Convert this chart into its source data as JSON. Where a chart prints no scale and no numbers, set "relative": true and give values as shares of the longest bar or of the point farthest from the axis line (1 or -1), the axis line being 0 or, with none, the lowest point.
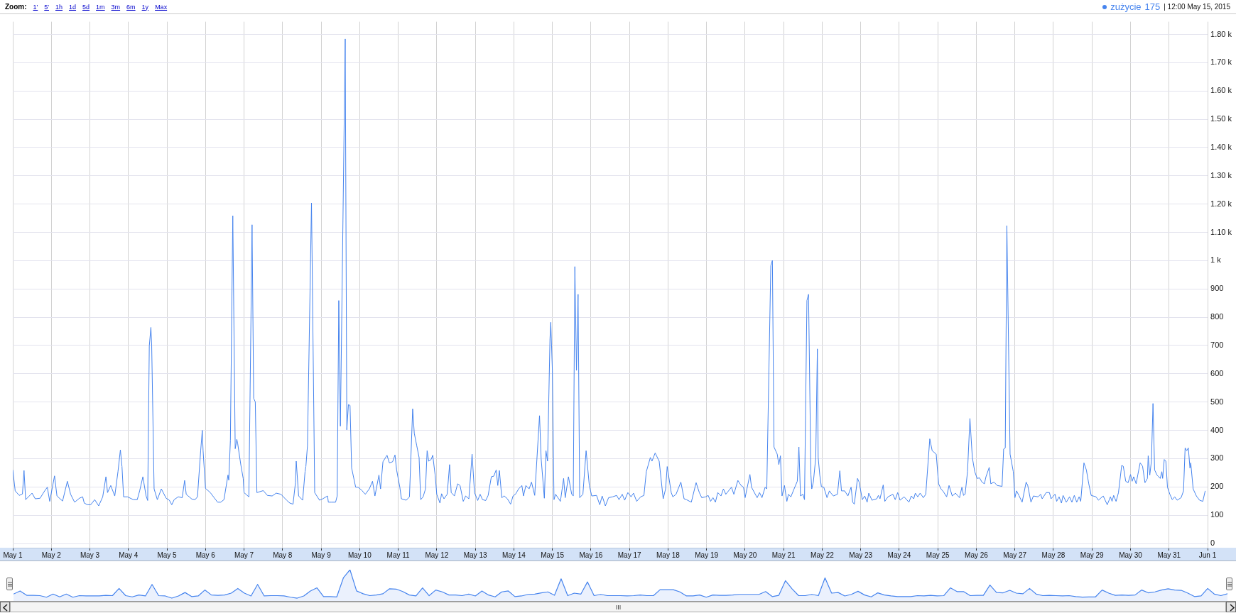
{
  "chart_data": [
    {
      "type": "line",
      "x": [
        "2015-05-01T00:00",
        "2015-05-01T01:30",
        "2015-05-01T04:00",
        "2015-05-01T06:00",
        "2015-05-01T07:00",
        "2015-05-01T08:00",
        "2015-05-01T12:00",
        "2015-05-01T14:00",
        "2015-05-01T17:00",
        "2015-05-01T19:30",
        "2015-05-01T21:30",
        "2015-05-01T23:00",
        "2015-05-02T02:00",
        "2015-05-02T03:30",
        "2015-05-02T07:00",
        "2015-05-02T10:00",
        "2015-05-02T12:00",
        "2015-05-02T14:30",
        "2015-05-02T17:30",
        "2015-05-02T19:30",
        "2015-05-02T20:30",
        "2015-05-02T22:30",
        "2015-05-03T00:30",
        "2015-05-03T03:00",
        "2015-05-03T05:30",
        "2015-05-03T08:00",
        "2015-05-03T10:00",
        "2015-05-03T11:00",
        "2015-05-03T13:00",
        "2015-05-03T15:30",
        "2015-05-03T17:30",
        "2015-05-03T19:00",
        "2015-05-03T20:00",
        "2015-05-03T21:00",
        "2015-05-03T23:30",
        "2015-05-04T03:00",
        "2015-05-04T05:30",
        "2015-05-04T07:00",
        "2015-05-04T09:00",
        "2015-05-04T11:00",
        "2015-05-04T12:00",
        "2015-05-04T13:00",
        "2015-05-04T14:00",
        "2015-05-04T14:30",
        "2015-05-04T16:00",
        "2015-05-04T18:00",
        "2015-05-04T20:30",
        "2015-05-04T23:30",
        "2015-05-05T01:30",
        "2015-05-05T03:00",
        "2015-05-05T04:30",
        "2015-05-05T07:00",
        "2015-05-05T09:30",
        "2015-05-05T11:00",
        "2015-05-05T12:00",
        "2015-05-05T15:30",
        "2015-05-05T17:30",
        "2015-05-05T19:00",
        "2015-05-05T21:00",
        "2015-05-05T22:00",
        "2015-05-05T22:30",
        "2015-05-06T00:00",
        "2015-05-06T03:00",
        "2015-05-06T05:30",
        "2015-05-06T07:30",
        "2015-05-06T09:30",
        "2015-05-06T11:30",
        "2015-05-06T14:00",
        "2015-05-06T14:30",
        "2015-05-06T15:30",
        "2015-05-06T17:00",
        "2015-05-06T18:30",
        "2015-05-06T19:30",
        "2015-05-06T20:00",
        "2015-05-06T22:00",
        "2015-05-06T23:30",
        "2015-05-07T00:00",
        "2015-05-07T03:00",
        "2015-05-07T05:00",
        "2015-05-07T06:00",
        "2015-05-07T07:00",
        "2015-05-07T08:00",
        "2015-05-07T12:00",
        "2015-05-07T14:30",
        "2015-05-07T17:30",
        "2015-05-07T20:00",
        "2015-05-07T23:00",
        "2015-05-08T02:30",
        "2015-05-08T04:30",
        "2015-05-08T06:30",
        "2015-05-08T08:00",
        "2015-05-08T08:30",
        "2015-05-08T10:00",
        "2015-05-08T12:30",
        "2015-05-08T14:00",
        "2015-05-08T14:30",
        "2015-05-08T15:30",
        "2015-05-08T18:00",
        "2015-05-08T20:00",
        "2015-05-08T23:00",
        "2015-05-09T01:00",
        "2015-05-09T04:00",
        "2015-05-09T04:30",
        "2015-05-09T06:30",
        "2015-05-09T09:00",
        "2015-05-09T10:00",
        "2015-05-09T11:00",
        "2015-05-09T12:00",
        "2015-05-09T15:00",
        "2015-05-09T16:00",
        "2015-05-09T17:00",
        "2015-05-09T18:00",
        "2015-05-09T19:00",
        "2015-05-09T21:30",
        "2015-05-09T23:00",
        "2015-05-10T01:00",
        "2015-05-10T03:30",
        "2015-05-10T06:00",
        "2015-05-10T08:00",
        "2015-05-10T09:30",
        "2015-05-10T12:00",
        "2015-05-10T13:00",
        "2015-05-10T14:30",
        "2015-05-10T17:00",
        "2015-05-10T18:30",
        "2015-05-10T20:30",
        "2015-05-10T22:00",
        "2015-05-10T23:00",
        "2015-05-11T01:00",
        "2015-05-11T02:00",
        "2015-05-11T05:00",
        "2015-05-11T07:00",
        "2015-05-11T09:00",
        "2015-05-11T10:00",
        "2015-05-11T11:30",
        "2015-05-11T13:00",
        "2015-05-11T14:00",
        "2015-05-11T15:30",
        "2015-05-11T17:00",
        "2015-05-11T18:00",
        "2015-05-11T19:00",
        "2015-05-11T20:30",
        "2015-05-11T21:30",
        "2015-05-11T23:00",
        "2015-05-12T00:00",
        "2015-05-12T02:00",
        "2015-05-12T03:00",
        "2015-05-12T04:30",
        "2015-05-12T06:30",
        "2015-05-12T08:00",
        "2015-05-12T09:00",
        "2015-05-12T11:00",
        "2015-05-12T13:00",
        "2015-05-12T14:30",
        "2015-05-12T16:30",
        "2015-05-12T18:00",
        "2015-05-12T20:00",
        "2015-05-12T22:00",
        "2015-05-12T23:30",
        "2015-05-13T01:30",
        "2015-05-13T03:00",
        "2015-05-13T04:30",
        "2015-05-13T06:30",
        "2015-05-13T08:00",
        "2015-05-13T10:00",
        "2015-05-13T11:30",
        "2015-05-13T13:00",
        "2015-05-13T14:00",
        "2015-05-13T15:00",
        "2015-05-13T16:30",
        "2015-05-13T18:00",
        "2015-05-13T20:00",
        "2015-05-13T22:00",
        "2015-05-13T23:30",
        "2015-05-14T01:00",
        "2015-05-14T03:00",
        "2015-05-14T05:00",
        "2015-05-14T06:00",
        "2015-05-14T07:30",
        "2015-05-14T09:30",
        "2015-05-14T11:00",
        "2015-05-14T13:00",
        "2015-05-14T16:00",
        "2015-05-14T17:00",
        "2015-05-14T19:00",
        "2015-05-14T20:00",
        "2015-05-14T21:00",
        "2015-05-14T22:30",
        "2015-05-14T23:00",
        "2015-05-15T00:00",
        "2015-05-15T01:00",
        "2015-05-15T02:00",
        "2015-05-15T05:00",
        "2015-05-15T07:00",
        "2015-05-15T08:00",
        "2015-05-15T10:00",
        "2015-05-15T12:00",
        "2015-05-15T13:00",
        "2015-05-15T14:00",
        "2015-05-15T15:00",
        "2015-05-15T16:00",
        "2015-05-15T17:00",
        "2015-05-15T19:00",
        "2015-05-15T21:00",
        "2015-05-15T23:00",
        "2015-05-16T00:30",
        "2015-05-16T03:30",
        "2015-05-16T05:30",
        "2015-05-16T07:00",
        "2015-05-16T09:00",
        "2015-05-16T11:00",
        "2015-05-16T13:30",
        "2015-05-16T16:00",
        "2015-05-16T17:30",
        "2015-05-16T19:30",
        "2015-05-16T21:00",
        "2015-05-16T23:00",
        "2015-05-17T01:00",
        "2015-05-17T02:30",
        "2015-05-17T04:30",
        "2015-05-17T07:00",
        "2015-05-17T09:00",
        "2015-05-17T10:30",
        "2015-05-17T13:00",
        "2015-05-17T14:00",
        "2015-05-17T16:00",
        "2015-05-17T18:30",
        "2015-05-17T21:00",
        "2015-05-17T22:30",
        "2015-05-17T23:30",
        "2015-05-18T02:00",
        "2015-05-18T03:00",
        "2015-05-18T05:00",
        "2015-05-18T08:00",
        "2015-05-18T10:00",
        "2015-05-18T11:30",
        "2015-05-18T14:30",
        "2015-05-18T17:30",
        "2015-05-18T19:30",
        "2015-05-18T21:00",
        "2015-05-18T23:30",
        "2015-05-19T01:00",
        "2015-05-19T02:30",
        "2015-05-19T04:00",
        "2015-05-19T05:30",
        "2015-05-19T07:00",
        "2015-05-19T09:00",
        "2015-05-19T10:30",
        "2015-05-19T12:00",
        "2015-05-19T15:30",
        "2015-05-19T17:00",
        "2015-05-19T19:30",
        "2015-05-19T21:30",
        "2015-05-19T23:00",
        "2015-05-20T00:00",
        "2015-05-20T03:00",
        "2015-05-20T04:00",
        "2015-05-20T07:30",
        "2015-05-20T09:00",
        "2015-05-20T10:30",
        "2015-05-20T12:30",
        "2015-05-20T13:30",
        "2015-05-20T16:00",
        "2015-05-20T17:00",
        "2015-05-20T18:00",
        "2015-05-20T20:00",
        "2015-05-20T21:00",
        "2015-05-20T22:00",
        "2015-05-20T23:00",
        "2015-05-21T00:30",
        "2015-05-21T02:00",
        "2015-05-21T03:00",
        "2015-05-21T04:30",
        "2015-05-21T06:30",
        "2015-05-21T08:30",
        "2015-05-21T09:30",
        "2015-05-21T10:30",
        "2015-05-21T12:00",
        "2015-05-21T13:00",
        "2015-05-21T14:30",
        "2015-05-21T15:30",
        "2015-05-21T17:00",
        "2015-05-21T17:30",
        "2015-05-21T18:30",
        "2015-05-21T20:00",
        "2015-05-21T21:00",
        "2015-05-21T21:30",
        "2015-05-21T22:30",
        "2015-05-21T23:30",
        "2015-05-22T01:00",
        "2015-05-22T03:00",
        "2015-05-22T04:30",
        "2015-05-22T05:30",
        "2015-05-22T07:00",
        "2015-05-22T09:30",
        "2015-05-22T11:00",
        "2015-05-22T12:00",
        "2015-05-22T14:00",
        "2015-05-22T16:00",
        "2015-05-22T18:00",
        "2015-05-22T19:00",
        "2015-05-22T20:00",
        "2015-05-22T22:00",
        "2015-05-22T23:00",
        "2015-05-23T01:00",
        "2015-05-23T02:30",
        "2015-05-23T04:00",
        "2015-05-23T05:00",
        "2015-05-23T07:00",
        "2015-05-23T10:00",
        "2015-05-23T11:00",
        "2015-05-23T12:00",
        "2015-05-23T14:00",
        "2015-05-23T15:00",
        "2015-05-23T17:00",
        "2015-05-23T20:00",
        "2015-05-23T21:30",
        "2015-05-23T23:00",
        "2015-05-24T00:30",
        "2015-05-24T03:00",
        "2015-05-24T06:00",
        "2015-05-24T07:30",
        "2015-05-24T09:00",
        "2015-05-24T10:00",
        "2015-05-24T11:30",
        "2015-05-24T13:00",
        "2015-05-24T15:00",
        "2015-05-24T16:30",
        "2015-05-24T19:00",
        "2015-05-24T20:30",
        "2015-05-24T23:00",
        "2015-05-25T00:30",
        "2015-05-25T02:00",
        "2015-05-25T03:30",
        "2015-05-25T05:30",
        "2015-05-25T07:00",
        "2015-05-25T09:00",
        "2015-05-25T11:00",
        "2015-05-25T13:30",
        "2015-05-25T15:00",
        "2015-05-25T16:00",
        "2015-05-25T17:00",
        "2015-05-25T18:30",
        "2015-05-25T20:00",
        "2015-05-25T21:30",
        "2015-05-25T23:00",
        "2015-05-26T00:30",
        "2015-05-26T02:00",
        "2015-05-26T03:30",
        "2015-05-26T05:00",
        "2015-05-26T06:00",
        "2015-05-26T08:00",
        "2015-05-26T09:00",
        "2015-05-26T11:00",
        "2015-05-26T13:00",
        "2015-05-26T16:00",
        "2015-05-26T17:00",
        "2015-05-26T18:00",
        "2015-05-26T19:00",
        "2015-05-26T21:00",
        "2015-05-26T23:00",
        "2015-05-27T00:00",
        "2015-05-27T01:00",
        "2015-05-27T02:30",
        "2015-05-27T04:30",
        "2015-05-27T07:00",
        "2015-05-27T08:00",
        "2015-05-27T10:00",
        "2015-05-27T11:30",
        "2015-05-27T14:30",
        "2015-05-27T16:00",
        "2015-05-27T17:00",
        "2015-05-27T19:30",
        "2015-05-27T21:30",
        "2015-05-27T22:30",
        "2015-05-28T01:00",
        "2015-05-28T02:00",
        "2015-05-28T03:30",
        "2015-05-28T05:00",
        "2015-05-28T06:00",
        "2015-05-28T08:00",
        "2015-05-28T10:00",
        "2015-05-28T11:30",
        "2015-05-28T13:00",
        "2015-05-28T14:30",
        "2015-05-28T16:00",
        "2015-05-28T17:00",
        "2015-05-28T19:00",
        "2015-05-28T20:30",
        "2015-05-28T22:00",
        "2015-05-28T23:30",
        "2015-05-29T02:30",
        "2015-05-29T04:00",
        "2015-05-29T07:00",
        "2015-05-29T09:30",
        "2015-05-29T11:30",
        "2015-05-29T12:30",
        "2015-05-29T13:30",
        "2015-05-29T15:00",
        "2015-05-29T16:30",
        "2015-05-29T18:30",
        "2015-05-29T19:30",
        "2015-05-29T21:00",
        "2015-05-29T22:30",
        "2015-05-30T00:00",
        "2015-05-30T01:00",
        "2015-05-30T02:00",
        "2015-05-30T03:30",
        "2015-05-30T04:30",
        "2015-05-30T06:00",
        "2015-05-30T07:30",
        "2015-05-30T09:00",
        "2015-05-30T10:30",
        "2015-05-30T11:00",
        "2015-05-30T12:00",
        "2015-05-30T13:00",
        "2015-05-30T14:00",
        "2015-05-30T15:00",
        "2015-05-30T16:30",
        "2015-05-30T18:30",
        "2015-05-30T19:30",
        "2015-05-30T20:00",
        "2015-05-30T21:00",
        "2015-05-30T22:00",
        "2015-05-30T23:00",
        "2015-05-31T00:30",
        "2015-05-31T02:00",
        "2015-05-31T03:30",
        "2015-05-31T05:00",
        "2015-05-31T07:30",
        "2015-05-31T09:00",
        "2015-05-31T10:00",
        "2015-05-31T11:00",
        "2015-05-31T12:00",
        "2015-05-31T13:00",
        "2015-05-31T13:30",
        "2015-05-31T15:00",
        "2015-05-31T17:00",
        "2015-05-31T19:00",
        "2015-05-31T21:00",
        "2015-05-31T22:30"
      ],
      "series": [
        {
          "name": "zużycie",
          "color": "#4684ee",
          "values": [
            260,
            186,
            170,
            175,
            258,
            155,
            178,
            158,
            160,
            183,
            199,
            149,
            239,
            168,
            150,
            220,
            174,
            146,
            160,
            165,
            143,
            137,
            137,
            155,
            133,
            165,
            236,
            180,
            205,
            168,
            254,
            331,
            272,
            165,
            165,
            155,
            155,
            186,
            236,
            168,
            152,
            698,
            764,
            698,
            193,
            155,
            193,
            160,
            153,
            137,
            155,
            165,
            162,
            223,
            174,
            157,
            155,
            165,
            328,
            400,
            328,
            195,
            180,
            161,
            146,
            146,
            155,
            242,
            224,
            365,
            1159,
            335,
            368,
            355,
            278,
            229,
            180,
            165,
            1127,
            513,
            501,
            180,
            187,
            170,
            168,
            178,
            174,
            153,
            143,
            139,
            214,
            291,
            168,
            153,
            254,
            272,
            346,
            1204,
            180,
            153,
            158,
            168,
            146,
            146,
            146,
            168,
            859,
            415,
            1784,
            402,
            491,
            488,
            267,
            199,
            199,
            190,
            174,
            193,
            220,
            168,
            242,
            193,
            289,
            312,
            285,
            289,
            313,
            260,
            199,
            158,
            153,
            165,
            476,
            390,
            347,
            304,
            155,
            165,
            193,
            328,
            291,
            297,
            312,
            242,
            174,
            143,
            176,
            158,
            174,
            279,
            180,
            168,
            211,
            205,
            149,
            168,
            158,
            316,
            180,
            152,
            174,
            155,
            152,
            170,
            236,
            238,
            260,
            205,
            258,
            162,
            168,
            158,
            139,
            168,
            174,
            193,
            205,
            168,
            205,
            193,
            217,
            170,
            452,
            300,
            160,
            328,
            291,
            723,
            782,
            612,
            155,
            174,
            149,
            230,
            162,
            236,
            175,
            168,
            979,
            612,
            881,
            162,
            174,
            328,
            205,
            168,
            170,
            137,
            168,
            133,
            162,
            165,
            170,
            155,
            174,
            153,
            180,
            165,
            178,
            149,
            165,
            170,
            254,
            304,
            291,
            320,
            291,
            158,
            193,
            272,
            180,
            165,
            174,
            217,
            158,
            155,
            146,
            215,
            180,
            162,
            165,
            170,
            149,
            162,
            146,
            180,
            168,
            193,
            174,
            199,
            174,
            223,
            205,
            199,
            162,
            244,
            199,
            162,
            180,
            162,
            199,
            193,
            982,
            1001,
            341,
            316,
            279,
            310,
            168,
            205,
            149,
            174,
            165,
            193,
            220,
            341,
            168,
            174,
            155,
            859,
            881,
            242,
            193,
            217,
            304,
            688,
            304,
            242,
            201,
            199,
            162,
            186,
            178,
            168,
            174,
            257,
            186,
            186,
            168,
            199,
            146,
            139,
            230,
            217,
            155,
            168,
            146,
            178,
            153,
            158,
            170,
            158,
            207,
            149,
            165,
            174,
            155,
            180,
            153,
            165,
            146,
            168,
            158,
            178,
            165,
            178,
            162,
            174,
            370,
            328,
            316,
            211,
            193,
            183,
            165,
            205,
            168,
            178,
            162,
            199,
            170,
            174,
            254,
            442,
            304,
            254,
            230,
            232,
            217,
            211,
            236,
            269,
            211,
            217,
            205,
            202,
            334,
            338,
            1124,
            316,
            254,
            162,
            186,
            170,
            146,
            217,
            205,
            146,
            168,
            165,
            174,
            158,
            180,
            180,
            158,
            174,
            149,
            165,
            143,
            170,
            146,
            165,
            146,
            170,
            146,
            165,
            149,
            285,
            260,
            211,
            170,
            165,
            153,
            168,
            137,
            165,
            149,
            170,
            149,
            180,
            276,
            273,
            220,
            215,
            244,
            220,
            236,
            211,
            242,
            285,
            273,
            215,
            230,
            310,
            242,
            291,
            495,
            260,
            242,
            230,
            254,
            230,
            297,
            291,
            199,
            174,
            155,
            165,
            153,
            162,
            186,
            338,
            328,
            338,
            267,
            285,
            193,
            168,
            153,
            149,
            186
          ]
        }
      ],
      "xlim": [
        "2015-05-01",
        "2015-06-01"
      ],
      "xticks": [
        {
          "value": "2015-05-01",
          "label": "May 1"
        },
        {
          "value": "2015-05-02",
          "label": "May 2"
        },
        {
          "value": "2015-05-03",
          "label": "May 3"
        },
        {
          "value": "2015-05-04",
          "label": "May 4"
        },
        {
          "value": "2015-05-05",
          "label": "May 5"
        },
        {
          "value": "2015-05-06",
          "label": "May 6"
        },
        {
          "value": "2015-05-07",
          "label": "May 7"
        },
        {
          "value": "2015-05-08",
          "label": "May 8"
        },
        {
          "value": "2015-05-09",
          "label": "May 9"
        },
        {
          "value": "2015-05-10",
          "label": "May 10"
        },
        {
          "value": "2015-05-11",
          "label": "May 11"
        },
        {
          "value": "2015-05-12",
          "label": "May 12"
        },
        {
          "value": "2015-05-13",
          "label": "May 13"
        },
        {
          "value": "2015-05-14",
          "label": "May 14"
        },
        {
          "value": "2015-05-15",
          "label": "May 15"
        },
        {
          "value": "2015-05-16",
          "label": "May 16"
        },
        {
          "value": "2015-05-17",
          "label": "May 17"
        },
        {
          "value": "2015-05-18",
          "label": "May 18"
        },
        {
          "value": "2015-05-19",
          "label": "May 19"
        },
        {
          "value": "2015-05-20",
          "label": "May 20"
        },
        {
          "value": "2015-05-21",
          "label": "May 21"
        },
        {
          "value": "2015-05-22",
          "label": "May 22"
        },
        {
          "value": "2015-05-23",
          "label": "May 23"
        },
        {
          "value": "2015-05-24",
          "label": "May 24"
        },
        {
          "value": "2015-05-25",
          "label": "May 25"
        },
        {
          "value": "2015-05-26",
          "label": "May 26"
        },
        {
          "value": "2015-05-27",
          "label": "May 27"
        },
        {
          "value": "2015-05-28",
          "label": "May 28"
        },
        {
          "value": "2015-05-29",
          "label": "May 29"
        },
        {
          "value": "2015-05-30",
          "label": "May 30"
        },
        {
          "value": "2015-05-31",
          "label": "May 31"
        },
        {
          "value": "2015-06-01",
          "label": "Jun 1"
        }
      ],
      "ylim": [
        -15,
        1845
      ],
      "yticks": [
        0,
        100,
        200,
        300,
        400,
        500,
        600,
        700,
        800,
        900,
        {
          "value": 1000,
          "label": "1 k"
        },
        {
          "value": 1100,
          "label": "1.10 k"
        },
        {
          "value": 1200,
          "label": "1.20 k"
        },
        {
          "value": 1300,
          "label": "1.30 k"
        },
        {
          "value": 1400,
          "label": "1.40 k"
        },
        {
          "value": 1500,
          "label": "1.50 k"
        },
        {
          "value": 1600,
          "label": "1.60 k"
        },
        {
          "value": 1700,
          "label": "1.70 k"
        },
        {
          "value": 1800,
          "label": "1.80 k"
        }
      ],
      "grid": true,
      "legend": "top right",
      "annotations": [
        "Zoom:",
        "1'",
        "5'",
        "1h",
        "1d",
        "5d",
        "1m",
        "3m",
        "6m",
        "1y",
        "Max",
        "175",
        "| 12:00 May 15, 2015"
      ]
    },
    {
      "type": "area",
      "relative": true,
      "color": "#4684ee",
      "tick_labels": false,
      "categories": [
        null,
        null,
        null,
        null,
        null,
        null,
        null,
        null,
        null,
        null,
        null,
        null,
        null,
        null,
        null,
        null,
        null,
        null,
        null,
        null,
        null,
        null,
        null,
        null,
        null,
        null,
        null,
        null,
        null,
        null,
        null,
        null,
        null,
        null,
        null,
        null,
        null,
        null,
        null,
        null,
        null,
        null,
        null,
        null,
        null,
        null,
        null,
        null,
        null,
        null,
        null,
        null,
        null,
        null,
        null,
        null,
        null,
        null,
        null,
        null,
        null,
        null,
        null,
        null,
        null,
        null,
        null,
        null,
        null,
        null,
        null,
        null,
        null,
        null,
        null,
        null,
        null,
        null,
        null,
        null,
        null,
        null,
        null,
        null,
        null,
        null,
        null,
        null,
        null,
        null,
        null,
        null,
        null,
        null,
        null,
        null,
        null,
        null,
        null,
        null,
        null,
        null,
        null,
        null,
        null,
        null,
        null,
        null,
        null,
        null,
        null,
        null,
        null,
        null,
        null,
        null,
        null,
        null,
        null,
        null,
        null,
        null,
        null,
        null,
        null,
        null,
        null,
        null,
        null,
        null,
        null,
        null,
        null,
        null,
        null,
        null,
        null,
        null,
        null,
        null,
        null,
        null,
        null,
        null,
        null,
        null,
        null,
        null,
        null,
        null,
        null,
        null,
        null,
        null,
        null,
        null,
        null,
        null,
        null,
        null,
        null,
        null,
        null,
        null,
        null,
        null,
        null,
        null,
        null,
        null,
        null,
        null,
        null,
        null,
        null,
        null,
        null,
        null,
        null,
        null,
        null,
        null,
        null,
        null,
        null
      ],
      "values": [
        0.22,
        0.32,
        0.18,
        0.18,
        0.17,
        0.12,
        0.22,
        0.13,
        0.22,
        0.12,
        0.17,
        0.16,
        0.16,
        0.16,
        0.18,
        0.17,
        0.4,
        0.17,
        0.13,
        0.19,
        0.16,
        0.53,
        0.17,
        0.16,
        0.09,
        0.16,
        0.27,
        0.14,
        0.16,
        0.35,
        0.19,
        0.18,
        0.19,
        0.25,
        0.4,
        0.25,
        0.16,
        0.53,
        0.16,
        0.17,
        0.17,
        0.16,
        0.12,
        0.09,
        0.16,
        0.32,
        0.42,
        0.14,
        0.14,
        0.13,
        0.74,
        1,
        0.32,
        0.23,
        0.17,
        0.19,
        0.23,
        0.39,
        0.38,
        0.3,
        0.19,
        0.16,
        0.42,
        0.17,
        0.35,
        0.29,
        0.19,
        0.19,
        0.17,
        0.22,
        0.16,
        0.32,
        0.19,
        0.13,
        0.29,
        0.32,
        0.14,
        0.16,
        0.21,
        0.22,
        0.26,
        0.29,
        0.18,
        0.71,
        0.17,
        0.25,
        0.22,
        0.61,
        0.17,
        0.21,
        0.17,
        0.17,
        0.17,
        0.16,
        0.17,
        0.19,
        0.17,
        0.17,
        0.36,
        0.36,
        0.36,
        0.29,
        0.16,
        0.16,
        0.19,
        0.12,
        0.19,
        0.18,
        0.18,
        0.19,
        0.21,
        0.21,
        0.21,
        0.21,
        0.3,
        0.14,
        0.18,
        0.65,
        0.39,
        0.17,
        0.17,
        0.21,
        0.17,
        0.74,
        0.25,
        0.27,
        0.16,
        0.21,
        0.31,
        0.19,
        0.13,
        0.26,
        0.19,
        0.16,
        0.14,
        0.14,
        0.14,
        0.17,
        0.16,
        0.18,
        0.16,
        0.17,
        0.42,
        0.3,
        0.3,
        0.17,
        0.18,
        0.18,
        0.51,
        0.27,
        0.26,
        0.34,
        0.25,
        0.23,
        0.4,
        0.22,
        0.17,
        0.18,
        0.17,
        0.16,
        0.17,
        0.14,
        0.12,
        0.13,
        0.13,
        0.35,
        0.25,
        0.18,
        0.19,
        0.18,
        0.19,
        0.35,
        0.26,
        0.29,
        0.35,
        0.39,
        0.35,
        0.34,
        0.25,
        0.14,
        0.16,
        0.4,
        0.22,
        0.17,
        0.23
      ]
    }
  ]
}
